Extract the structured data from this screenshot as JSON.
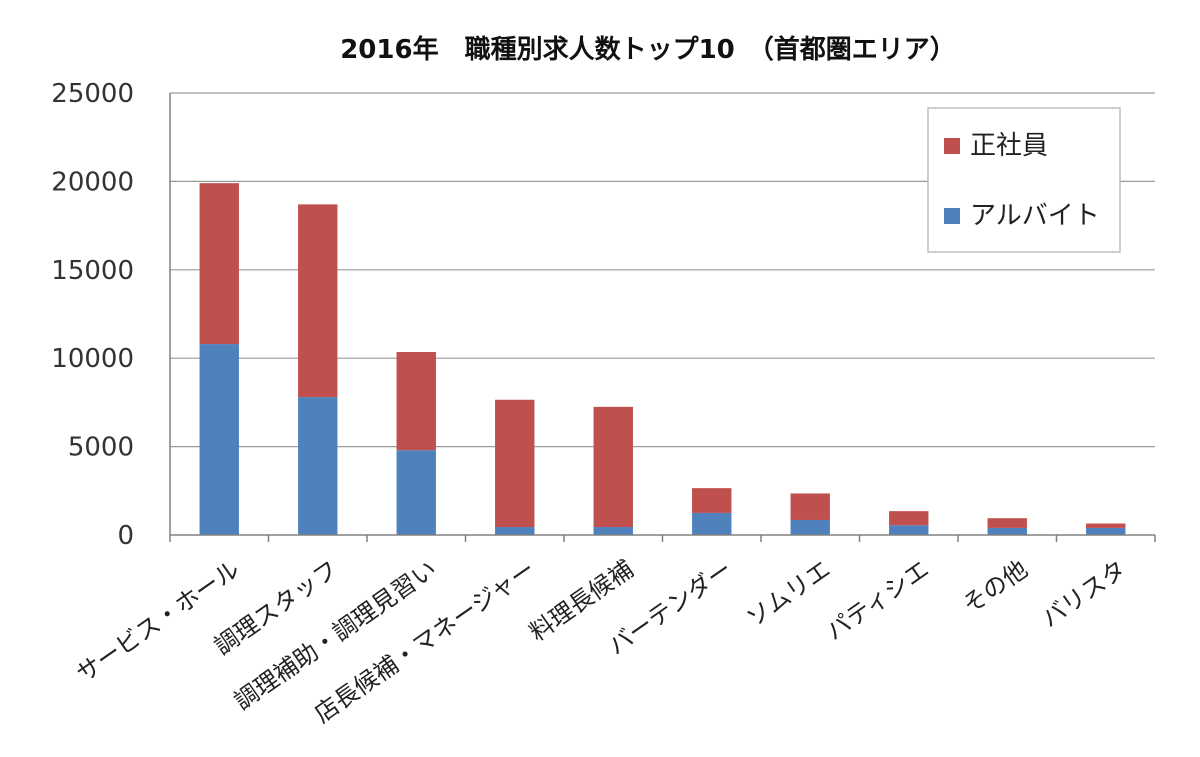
{
  "chart_data": {
    "type": "bar",
    "stacked": true,
    "title": "2016年　職種別求人数トップ10　（首都圏エリア）",
    "xlabel": "",
    "ylabel": "",
    "ylim": [
      0,
      25000
    ],
    "yticks": [
      0,
      5000,
      10000,
      15000,
      20000,
      25000
    ],
    "grid": true,
    "legend_position": "top-right",
    "categories": [
      "サービス・ホール",
      "調理スタッフ",
      "調理補助・調理見習い",
      "店長候補・マネージャー",
      "料理長候補",
      "バーテンダー",
      "ソムリエ",
      "パティシエ",
      "その他",
      "バリスタ"
    ],
    "series": [
      {
        "name": "アルバイト",
        "color": "#4f81bd",
        "values": [
          10800,
          7800,
          4800,
          450,
          450,
          1250,
          850,
          550,
          400,
          400
        ]
      },
      {
        "name": "正社員",
        "color": "#c0504d",
        "values": [
          9100,
          10900,
          5550,
          7200,
          6800,
          1400,
          1500,
          800,
          550,
          250
        ]
      }
    ]
  }
}
